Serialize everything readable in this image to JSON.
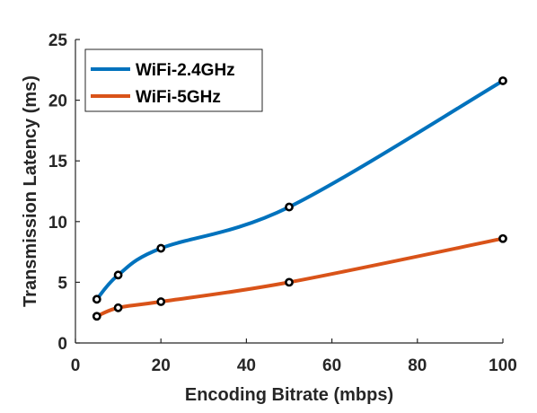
{
  "chart_data": {
    "type": "line",
    "xlabel": "Encoding Bitrate (mbps)",
    "ylabel": "Transmission Latency (ms)",
    "xlim": [
      0,
      100
    ],
    "ylim": [
      0,
      25
    ],
    "xticks": [
      0,
      20,
      40,
      60,
      80,
      100
    ],
    "yticks": [
      0,
      5,
      10,
      15,
      20,
      25
    ],
    "grid": false,
    "legend_position": "top-left",
    "series": [
      {
        "name": "WiFi-2.4GHz",
        "color": "#0072BD",
        "x": [
          5,
          10,
          20,
          50,
          100
        ],
        "y": [
          3.6,
          5.6,
          7.8,
          11.2,
          21.6
        ]
      },
      {
        "name": "WiFi-5GHz",
        "color": "#D95319",
        "x": [
          5,
          10,
          20,
          50,
          100
        ],
        "y": [
          2.2,
          2.9,
          3.4,
          5.0,
          8.6
        ]
      }
    ]
  }
}
